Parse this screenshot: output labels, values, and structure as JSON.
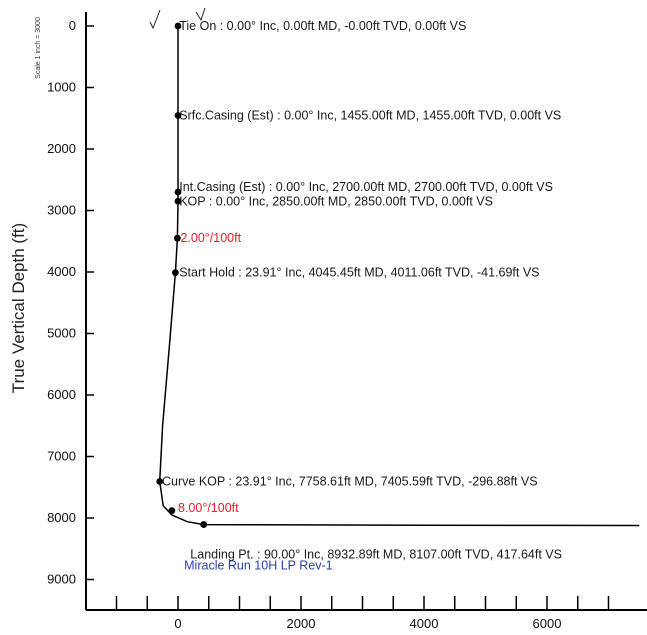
{
  "chart_data": {
    "type": "line",
    "ylabel": "True Vertical Depth (ft)",
    "scale_note": "Scale 1 inch = 3000",
    "xlim": [
      -1500,
      7500
    ],
    "ylim": [
      -300,
      9500
    ],
    "x_ticks": [
      {
        "value": 0,
        "label": "0"
      },
      {
        "value": 2000,
        "label": "2000"
      },
      {
        "value": 4000,
        "label": "4000"
      },
      {
        "value": 6000,
        "label": "6000"
      }
    ],
    "x_minor_ticks": [
      -1000,
      -500,
      500,
      1000,
      1500,
      2500,
      3000,
      3500,
      4500,
      5000,
      5500,
      6500,
      7000
    ],
    "y_ticks": [
      {
        "value": 0,
        "label": "0"
      },
      {
        "value": 1000,
        "label": "1000"
      },
      {
        "value": 2000,
        "label": "2000"
      },
      {
        "value": 3000,
        "label": "3000"
      },
      {
        "value": 4000,
        "label": "4000"
      },
      {
        "value": 5000,
        "label": "5000"
      },
      {
        "value": 6000,
        "label": "6000"
      },
      {
        "value": 7000,
        "label": "7000"
      },
      {
        "value": 8000,
        "label": "8000"
      },
      {
        "value": 9000,
        "label": "9000"
      }
    ],
    "series": [
      {
        "color": "#000000",
        "x": [
          0,
          0,
          0,
          0,
          -10,
          -42,
          -140,
          -250,
          -297,
          -240,
          -100,
          150,
          418,
          2000,
          4000,
          6000,
          7500
        ],
        "y": [
          0,
          1455,
          2700,
          2850,
          3450,
          4011,
          5200,
          6500,
          7406,
          7800,
          7950,
          8060,
          8107,
          8112,
          8117,
          8120,
          8122
        ]
      }
    ],
    "points": [
      {
        "name": "tie-on",
        "x": 0,
        "y": 0
      },
      {
        "name": "srfc-casing",
        "x": 0,
        "y": 1455
      },
      {
        "name": "int-casing",
        "x": 0,
        "y": 2700
      },
      {
        "name": "kop",
        "x": 0,
        "y": 2850
      },
      {
        "name": "build-rate",
        "x": -10,
        "y": 3450
      },
      {
        "name": "start-hold",
        "x": -42,
        "y": 4011
      },
      {
        "name": "curve-kop",
        "x": -297,
        "y": 7406
      },
      {
        "name": "curve-rate",
        "x": -100,
        "y": 7880
      },
      {
        "name": "landing-pt",
        "x": 418,
        "y": 8107
      }
    ],
    "annotations": [
      {
        "text": "Tie On : 0.00° Inc, 0.00ft MD, -0.00ft TVD, 0.00ft VS",
        "x": 20,
        "y": 0,
        "color": "#1a1a1a"
      },
      {
        "text": "Srfc.Casing (Est) : 0.00° Inc, 1455.00ft MD, 1455.00ft TVD, 0.00ft VS",
        "x": 20,
        "y": 1455,
        "color": "#1a1a1a"
      },
      {
        "text": "Int.Casing (Est) : 0.00° Inc, 2700.00ft MD, 2700.00ft TVD, 0.00ft VS",
        "x": 20,
        "y": 2620,
        "color": "#1a1a1a"
      },
      {
        "text": "KOP : 0.00° Inc, 2850.00ft MD, 2850.00ft TVD, 0.00ft VS",
        "x": 20,
        "y": 2850,
        "color": "#1a1a1a"
      },
      {
        "text": "2.00°/100ft",
        "x": 40,
        "y": 3450,
        "color": "#e8202a"
      },
      {
        "text": "Start Hold : 23.91° Inc, 4045.45ft MD, 4011.06ft TVD, -41.69ft VS",
        "x": 20,
        "y": 4011,
        "color": "#1a1a1a"
      },
      {
        "text": "Curve KOP : 23.91° Inc, 7758.61ft MD, 7405.59ft TVD, -296.88ft VS",
        "x": -260,
        "y": 7406,
        "color": "#1a1a1a"
      },
      {
        "text": "8.00°/100ft",
        "x": 0,
        "y": 7840,
        "color": "#e8202a"
      },
      {
        "text": "Landing Pt. : 90.00° Inc, 8932.89ft MD, 8107.00ft TVD, 417.64ft VS",
        "x": 200,
        "y": 8590,
        "color": "#1a1a1a"
      },
      {
        "text": "Miracle Run 10H LP Rev-1",
        "x": 100,
        "y": 8770,
        "color": "#2a3fb0"
      }
    ],
    "grid": false
  }
}
